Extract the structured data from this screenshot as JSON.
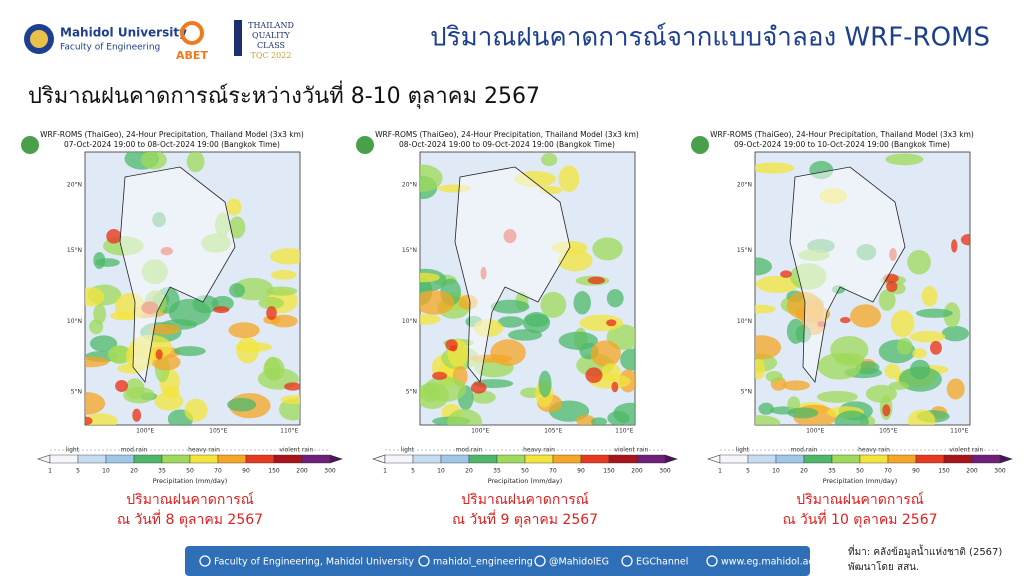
{
  "header": {
    "university": "Mahidol University",
    "faculty": "Faculty of Engineering",
    "abet": "ABET",
    "tqc_lines": [
      "THAILAND",
      "QUALITY",
      "CLASS"
    ],
    "tqc_year": "TQC 2022",
    "title": "ปริมาณฝนคาดการณ์จากแบบจำลอง WRF-ROMS"
  },
  "subtitle": "ปริมาณฝนคาดการณ์ระหว่างวันที่ 8-10 ตุลาคม 2567",
  "map_common": {
    "map_title": "WRF-ROMS (ThaiGeo), 24-Hour Precipitation, Thailand Model (3x3 km)",
    "lat_labels": [
      "20°N",
      "15°N",
      "10°N",
      "5°N"
    ],
    "lon_labels": [
      "100°E",
      "105°E",
      "110°E"
    ],
    "rain_classes": [
      "light",
      "mod.rain",
      "heavy rain",
      "violent rain"
    ],
    "colorbar_ticks": [
      1,
      5,
      10,
      20,
      35,
      50,
      70,
      90,
      150,
      200,
      300
    ],
    "colorbar_label": "Precipitation (mm/day)"
  },
  "panels": [
    {
      "period": "07-Oct-2024 19:00 to 08-Oct-2024 19:00 (Bangkok Time)",
      "caption": [
        "ปริมาณฝนคาดการณ์",
        "ณ วันที่ 8 ตุลาคม 2567"
      ]
    },
    {
      "period": "08-Oct-2024 19:00 to 09-Oct-2024 19:00 (Bangkok Time)",
      "caption": [
        "ปริมาณฝนคาดการณ์",
        "ณ วันที่ 9 ตุลาคม 2567"
      ]
    },
    {
      "period": "09-Oct-2024 19:00 to 10-Oct-2024 19:00 (Bangkok Time)",
      "caption": [
        "ปริมาณฝนคาดการณ์",
        "ณ วันที่ 10 ตุลาคม 2567"
      ]
    }
  ],
  "footer": {
    "links": [
      "Faculty of Engineering, Mahidol University",
      "mahidol_engineering",
      "@MahidolEG",
      "EGChannel",
      "www.eg.mahidol.ac.th"
    ],
    "source": [
      "ที่มา: คลังข้อมูลน้ำแห่งชาติ (2567)",
      "พัฒนาโดย สสน."
    ]
  }
}
